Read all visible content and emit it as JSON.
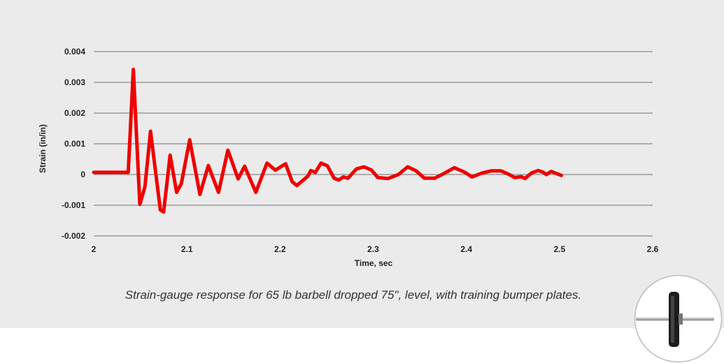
{
  "chart_data": {
    "type": "line",
    "title": "",
    "xlabel": "Time, sec",
    "ylabel": "Strain (in/in)",
    "xlim": [
      2,
      2.6
    ],
    "ylim": [
      -0.002,
      0.004
    ],
    "x_ticks": [
      "2",
      "2.1",
      "2.2",
      "2.3",
      "2.4",
      "2.5",
      "2.6"
    ],
    "y_ticks": [
      "0.004",
      "0.003",
      "0.002",
      "0.001",
      "0",
      "-0.001",
      "-0.002"
    ],
    "grid": "horizontal",
    "legend": "none",
    "series": [
      {
        "color": "#ee0000",
        "points": [
          [
            2.0,
            7e-05
          ],
          [
            2.037,
            7e-05
          ],
          [
            2.0425,
            0.00342
          ],
          [
            2.0495,
            -0.00097
          ],
          [
            2.055,
            -0.0004
          ],
          [
            2.061,
            0.00141
          ],
          [
            2.0715,
            -0.00115
          ],
          [
            2.075,
            -0.00122
          ],
          [
            2.082,
            0.00063
          ],
          [
            2.089,
            -0.00058
          ],
          [
            2.094,
            -0.0003
          ],
          [
            2.103,
            0.00113
          ],
          [
            2.114,
            -0.00065
          ],
          [
            2.123,
            0.00029
          ],
          [
            2.134,
            -0.00058
          ],
          [
            2.144,
            0.00079
          ],
          [
            2.155,
            -0.00014
          ],
          [
            2.162,
            0.00027
          ],
          [
            2.174,
            -0.00058
          ],
          [
            2.186,
            0.00037
          ],
          [
            2.195,
            0.00014
          ],
          [
            2.206,
            0.00035
          ],
          [
            2.213,
            -0.00023
          ],
          [
            2.218,
            -0.00036
          ],
          [
            2.23,
            -5e-05
          ],
          [
            2.233,
            0.00013
          ],
          [
            2.238,
            7e-05
          ],
          [
            2.244,
            0.00037
          ],
          [
            2.251,
            0.00028
          ],
          [
            2.258,
            -0.00012
          ],
          [
            2.263,
            -0.00018
          ],
          [
            2.268,
            -8e-05
          ],
          [
            2.273,
            -0.00012
          ],
          [
            2.282,
            0.00018
          ],
          [
            2.29,
            0.00025
          ],
          [
            2.298,
            0.00015
          ],
          [
            2.305,
            -0.0001
          ],
          [
            2.316,
            -0.00013
          ],
          [
            2.327,
            0.0
          ],
          [
            2.337,
            0.00025
          ],
          [
            2.346,
            0.00012
          ],
          [
            2.355,
            -0.00012
          ],
          [
            2.366,
            -0.00012
          ],
          [
            2.377,
            5e-05
          ],
          [
            2.387,
            0.00022
          ],
          [
            2.398,
            8e-05
          ],
          [
            2.406,
            -8e-05
          ],
          [
            2.417,
            5e-05
          ],
          [
            2.427,
            0.00012
          ],
          [
            2.437,
            0.00012
          ],
          [
            2.446,
            0.0
          ],
          [
            2.452,
            -0.0001
          ],
          [
            2.459,
            -7e-05
          ],
          [
            2.463,
            -0.00013
          ],
          [
            2.47,
            5e-05
          ],
          [
            2.477,
            0.00013
          ],
          [
            2.482,
            8e-05
          ],
          [
            2.486,
            0.0
          ],
          [
            2.491,
            0.0001
          ],
          [
            2.502,
            -3e-05
          ]
        ]
      }
    ]
  },
  "caption": "Strain-gauge response for 65 lb barbell dropped 75\", level, with training bumper plates."
}
